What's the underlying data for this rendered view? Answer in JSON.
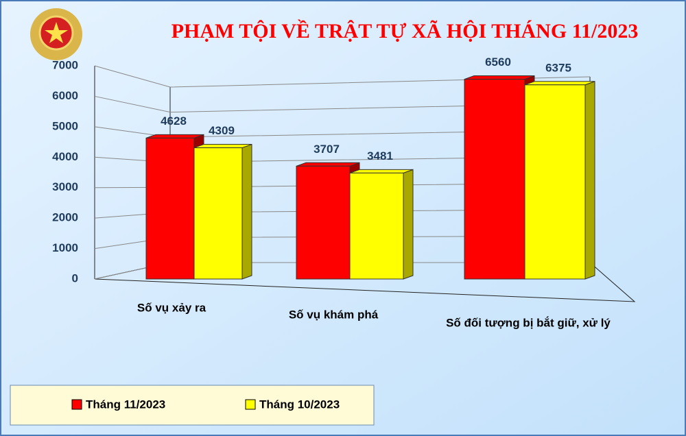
{
  "chart_data": {
    "type": "bar3d",
    "title": "PHẠM TỘI VỀ TRẬT TỰ XÃ HỘI THÁNG 11/2023",
    "categories": [
      "Số vụ xảy ra",
      "Số vụ khám phá",
      "Số đối tượng bị bắt giữ, xử lý"
    ],
    "series": [
      {
        "name": "Tháng 11/2023",
        "color": "#ff0000",
        "values": [
          4628,
          3707,
          6560
        ]
      },
      {
        "name": "Tháng 10/2023",
        "color": "#ffff00",
        "values": [
          4309,
          3481,
          6375
        ]
      }
    ],
    "ylim": [
      0,
      7000
    ],
    "yticks": [
      0,
      1000,
      2000,
      3000,
      4000,
      5000,
      6000,
      7000
    ],
    "grid": true
  }
}
